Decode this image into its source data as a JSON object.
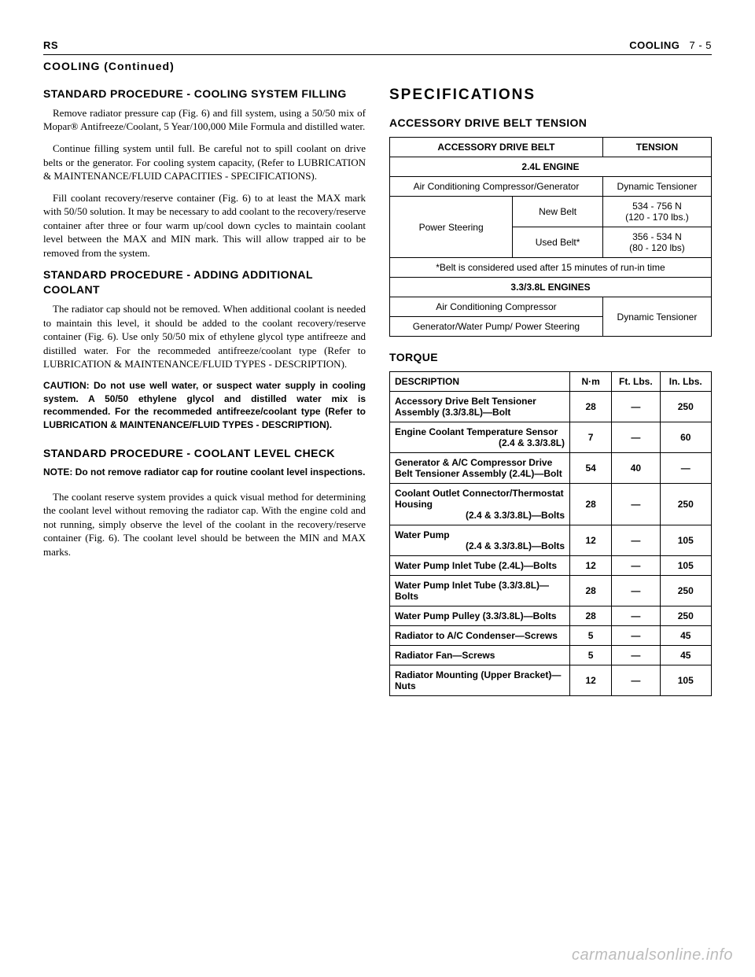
{
  "header": {
    "left": "RS",
    "right_section": "COOLING",
    "right_page": "7 - 5",
    "continued": "COOLING (Continued)"
  },
  "left_col": {
    "h1": "STANDARD PROCEDURE - COOLING SYSTEM FILLING",
    "p1": "Remove radiator pressure cap (Fig. 6) and fill system, using a 50/50 mix of Mopar® Antifreeze/Coolant, 5 Year/100,000 Mile Formula and distilled water.",
    "p2": "Continue filling system until full. Be careful not to spill coolant on drive belts or the generator. For cooling system capacity, (Refer to LUBRICATION & MAINTENANCE/FLUID CAPACITIES - SPECIFICATIONS).",
    "p3": "Fill coolant recovery/reserve container (Fig. 6) to at least the MAX mark with 50/50 solution. It may be necessary to add coolant to the recovery/reserve container after three or four warm up/cool down cycles to maintain coolant level between the MAX and MIN mark. This will allow trapped air to be removed from the system.",
    "h2": "STANDARD PROCEDURE - ADDING ADDITIONAL COOLANT",
    "p4": "The radiator cap should not be removed. When additional coolant is needed to maintain this level, it should be added to the coolant recovery/reserve container (Fig. 6). Use only 50/50 mix of ethylene glycol type antifreeze and distilled water. For the recommeded antifreeze/coolant type (Refer to LUBRICATION & MAINTENANCE/FLUID TYPES - DESCRIPTION).",
    "caution": "CAUTION: Do not use well water, or suspect water supply in cooling system. A 50/50 ethylene glycol and distilled water mix is recommended. For the recommeded antifreeze/coolant type (Refer to LUBRICATION & MAINTENANCE/FLUID TYPES - DESCRIPTION).",
    "h3": "STANDARD PROCEDURE - COOLANT LEVEL CHECK",
    "note": "NOTE: Do not remove radiator cap for routine coolant level inspections.",
    "p5": "The coolant reserve system provides a quick visual method for determining the coolant level without removing the radiator cap. With the engine cold and not running, simply observe the level of the coolant in the recovery/reserve container (Fig. 6). The coolant level should be between the MIN and MAX marks."
  },
  "right_col": {
    "h_spec": "SPECIFICATIONS",
    "h_belt": "ACCESSORY DRIVE BELT TENSION",
    "belt_table": {
      "head_left": "ACCESSORY DRIVE BELT",
      "head_right": "TENSION",
      "eng24": "2.4L ENGINE",
      "r1_l": "Air Conditioning Compressor/Generator",
      "r1_r": "Dynamic Tensioner",
      "ps": "Power Steering",
      "new": "New Belt",
      "new_v1": "534 - 756 N",
      "new_v2": "(120 - 170 lbs.)",
      "used": "Used Belt*",
      "used_v1": "356 - 534 N",
      "used_v2": "(80 - 120 lbs)",
      "footnote": "*Belt is considered used after 15 minutes of run-in time",
      "eng33": "3.3/3.8L ENGINES",
      "r2_l": "Air Conditioning Compressor",
      "r3_l": "Generator/Water Pump/ Power Steering",
      "r23_r": "Dynamic Tensioner"
    },
    "h_torque": "TORQUE",
    "torque_table": {
      "head": {
        "c1": "DESCRIPTION",
        "c2": "N·m",
        "c3": "Ft. Lbs.",
        "c4": "In. Lbs."
      },
      "rows": [
        {
          "desc": "Accessory Drive Belt Tensioner Assembly (3.3/3.8L)—Bolt",
          "nm": "28",
          "ft": "—",
          "in": "250"
        },
        {
          "desc": "Engine Coolant Temperature Sensor",
          "sub": "(2.4 & 3.3/3.8L)",
          "nm": "7",
          "ft": "—",
          "in": "60"
        },
        {
          "desc": "Generator & A/C Compressor Drive Belt Tensioner Assembly (2.4L)—Bolt",
          "nm": "54",
          "ft": "40",
          "in": "—"
        },
        {
          "desc": "Coolant Outlet Connector/Thermostat Housing",
          "sub": "(2.4 & 3.3/3.8L)—Bolts",
          "nm": "28",
          "ft": "—",
          "in": "250"
        },
        {
          "desc": "Water Pump",
          "sub": "(2.4 & 3.3/3.8L)—Bolts",
          "nm": "12",
          "ft": "—",
          "in": "105"
        },
        {
          "desc": "Water Pump Inlet Tube (2.4L)—Bolts",
          "nm": "12",
          "ft": "—",
          "in": "105"
        },
        {
          "desc": "Water Pump Inlet Tube (3.3/3.8L)—Bolts",
          "nm": "28",
          "ft": "—",
          "in": "250"
        },
        {
          "desc": "Water Pump Pulley (3.3/3.8L)—Bolts",
          "nm": "28",
          "ft": "—",
          "in": "250"
        },
        {
          "desc": "Radiator to A/C Condenser—Screws",
          "nm": "5",
          "ft": "—",
          "in": "45"
        },
        {
          "desc": "Radiator Fan—Screws",
          "nm": "5",
          "ft": "—",
          "in": "45"
        },
        {
          "desc": "Radiator Mounting (Upper Bracket)—Nuts",
          "nm": "12",
          "ft": "—",
          "in": "105"
        }
      ]
    }
  },
  "watermark": "carmanualsonline.info"
}
